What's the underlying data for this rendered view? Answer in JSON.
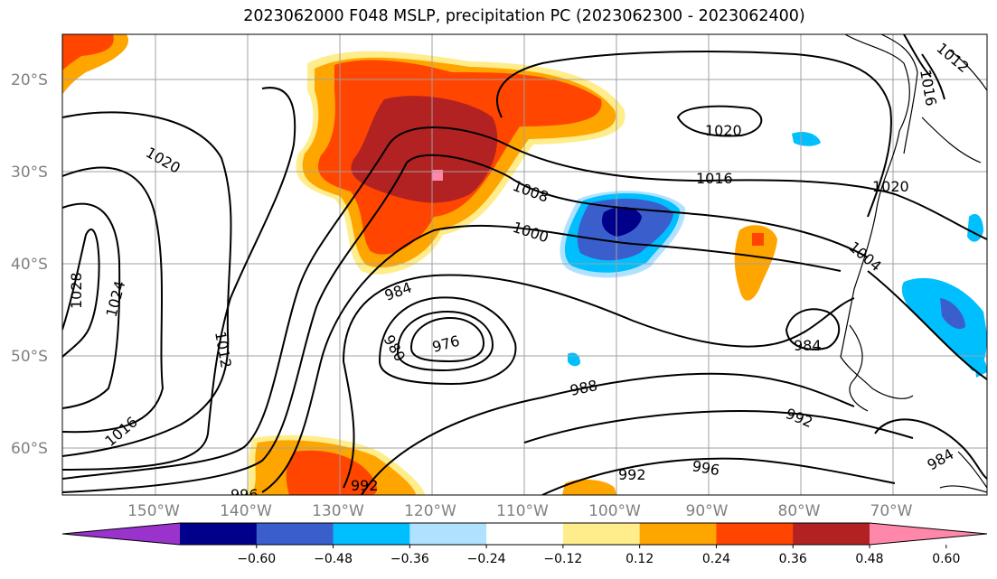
{
  "title": "2023062000 F048 MSLP, precipitation PC (2023062300 - 2023062400)",
  "lat_labels": [
    "20°S",
    "30°S",
    "40°S",
    "50°S",
    "60°S"
  ],
  "lon_labels": [
    "150°W",
    "140°W",
    "130°W",
    "120°W",
    "110°W",
    "100°W",
    "90°W",
    "80°W",
    "70°W"
  ],
  "isobar_labels": [
    "1020",
    "1028",
    "1024",
    "1012",
    "1016",
    "1008",
    "1000",
    "984",
    "980",
    "976",
    "988",
    "996",
    "992",
    "1020",
    "1016",
    "1020",
    "1012",
    "1016",
    "1004",
    "984",
    "992",
    "996",
    "984",
    "992"
  ],
  "colorbar": {
    "ticks": [
      "−0.60",
      "−0.48",
      "−0.36",
      "−0.24",
      "−0.12",
      "0.12",
      "0.24",
      "0.36",
      "0.48",
      "0.60"
    ],
    "colors": [
      "#9933cc",
      "#00008b",
      "#3a5fcd",
      "#00bfff",
      "#b0e2ff",
      "#ffffff",
      "#ffec8b",
      "#ffa500",
      "#ff4500",
      "#b22222",
      "#ff88aa"
    ]
  }
}
